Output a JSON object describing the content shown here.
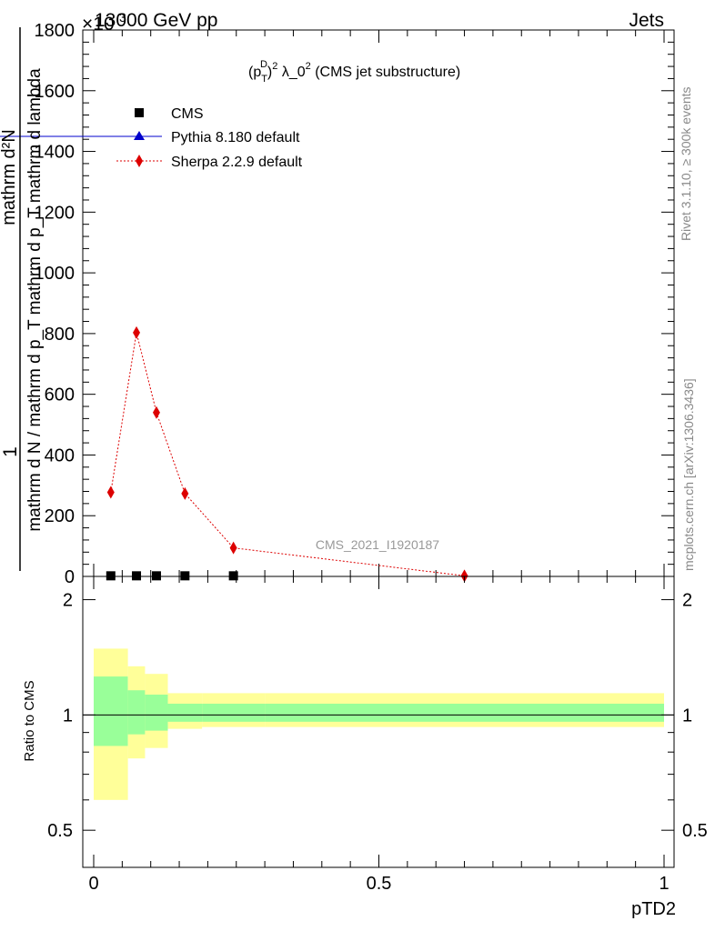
{
  "header": {
    "left": "13000 GeV pp",
    "right": "Jets",
    "exponent_prefix": "×10",
    "exponent": "3"
  },
  "side_labels": {
    "rivet": "Rivet 3.1.10, ≥ 300k events",
    "mcplots": "mcplots.cern.ch [arXiv:1306.3436]"
  },
  "watermark": "CMS_2021_I1920187",
  "chart_data": [
    {
      "type": "line",
      "title_parts": {
        "p": "(p",
        "sup_D": "D",
        "sub_T": "T",
        "close": ")",
        "sq": "2",
        "lambda": " λ_0",
        "sq2": "2",
        "rest": " (CMS jet substructure)"
      },
      "ylabel_numerator": "1",
      "ylabel_den_line1": "mathrm d N / mathrm d p_",
      "ylabel_den_line2": "mathrm d p",
      "ylabel_num_line1": "mathrm d",
      "ylabel_num_line2": "N",
      "ylabel_den_text": "mathrm d N / mathrm d p_T mathrm d p_T mathrm d lambda",
      "ylabel_num_text": "mathrm d²N",
      "xlim": [
        0,
        1
      ],
      "ylim": [
        0,
        1800
      ],
      "y_multiplier": "×10^3",
      "yticks": [
        0,
        200,
        400,
        600,
        800,
        1000,
        1200,
        1400,
        1600,
        1800
      ],
      "ytick_labels": [
        "0",
        "200",
        "400",
        "600",
        "800",
        "1000",
        "1200",
        "1400",
        "1600",
        "1800"
      ],
      "legend_position": "top-left",
      "series": [
        {
          "name": "CMS",
          "marker": "square",
          "color": "#000000",
          "x": [
            0.03,
            0.075,
            0.11,
            0.16,
            0.245
          ],
          "y": [
            2,
            2,
            2,
            2,
            2
          ]
        },
        {
          "name": "Pythia 8.180 default",
          "marker": "triangle",
          "color": "#0000cc",
          "x": [],
          "y": []
        },
        {
          "name": "Sherpa 2.2.9 default",
          "marker": "diamond",
          "color": "#dd0000",
          "line": "dotted",
          "x": [
            0.03,
            0.075,
            0.11,
            0.16,
            0.245,
            0.65
          ],
          "y": [
            277,
            803,
            540,
            273,
            94,
            2
          ]
        }
      ]
    },
    {
      "type": "area",
      "ylabel": "Ratio to CMS",
      "xlabel": "pTD2",
      "xlim": [
        0,
        1
      ],
      "ylim": [
        0.4,
        2.3
      ],
      "yticks": [
        0.5,
        1,
        2
      ],
      "ytick_labels": [
        "0.5",
        "1",
        "2"
      ],
      "xticks": [
        0,
        0.5,
        1
      ],
      "xtick_labels": [
        "0",
        "0.5",
        "1"
      ],
      "bins": [
        0,
        0.06,
        0.09,
        0.13,
        0.19,
        0.3,
        1.0
      ],
      "band_yellow": {
        "color": "#ffff99",
        "low": [
          0.6,
          0.77,
          0.82,
          0.92,
          0.93,
          0.93
        ],
        "high": [
          1.49,
          1.34,
          1.28,
          1.14,
          1.14,
          1.14
        ]
      },
      "band_green": {
        "color": "#99ff99",
        "low": [
          0.83,
          0.89,
          0.91,
          0.96,
          0.96,
          0.96
        ],
        "high": [
          1.26,
          1.16,
          1.13,
          1.07,
          1.07,
          1.07
        ]
      },
      "reference": 1
    }
  ]
}
